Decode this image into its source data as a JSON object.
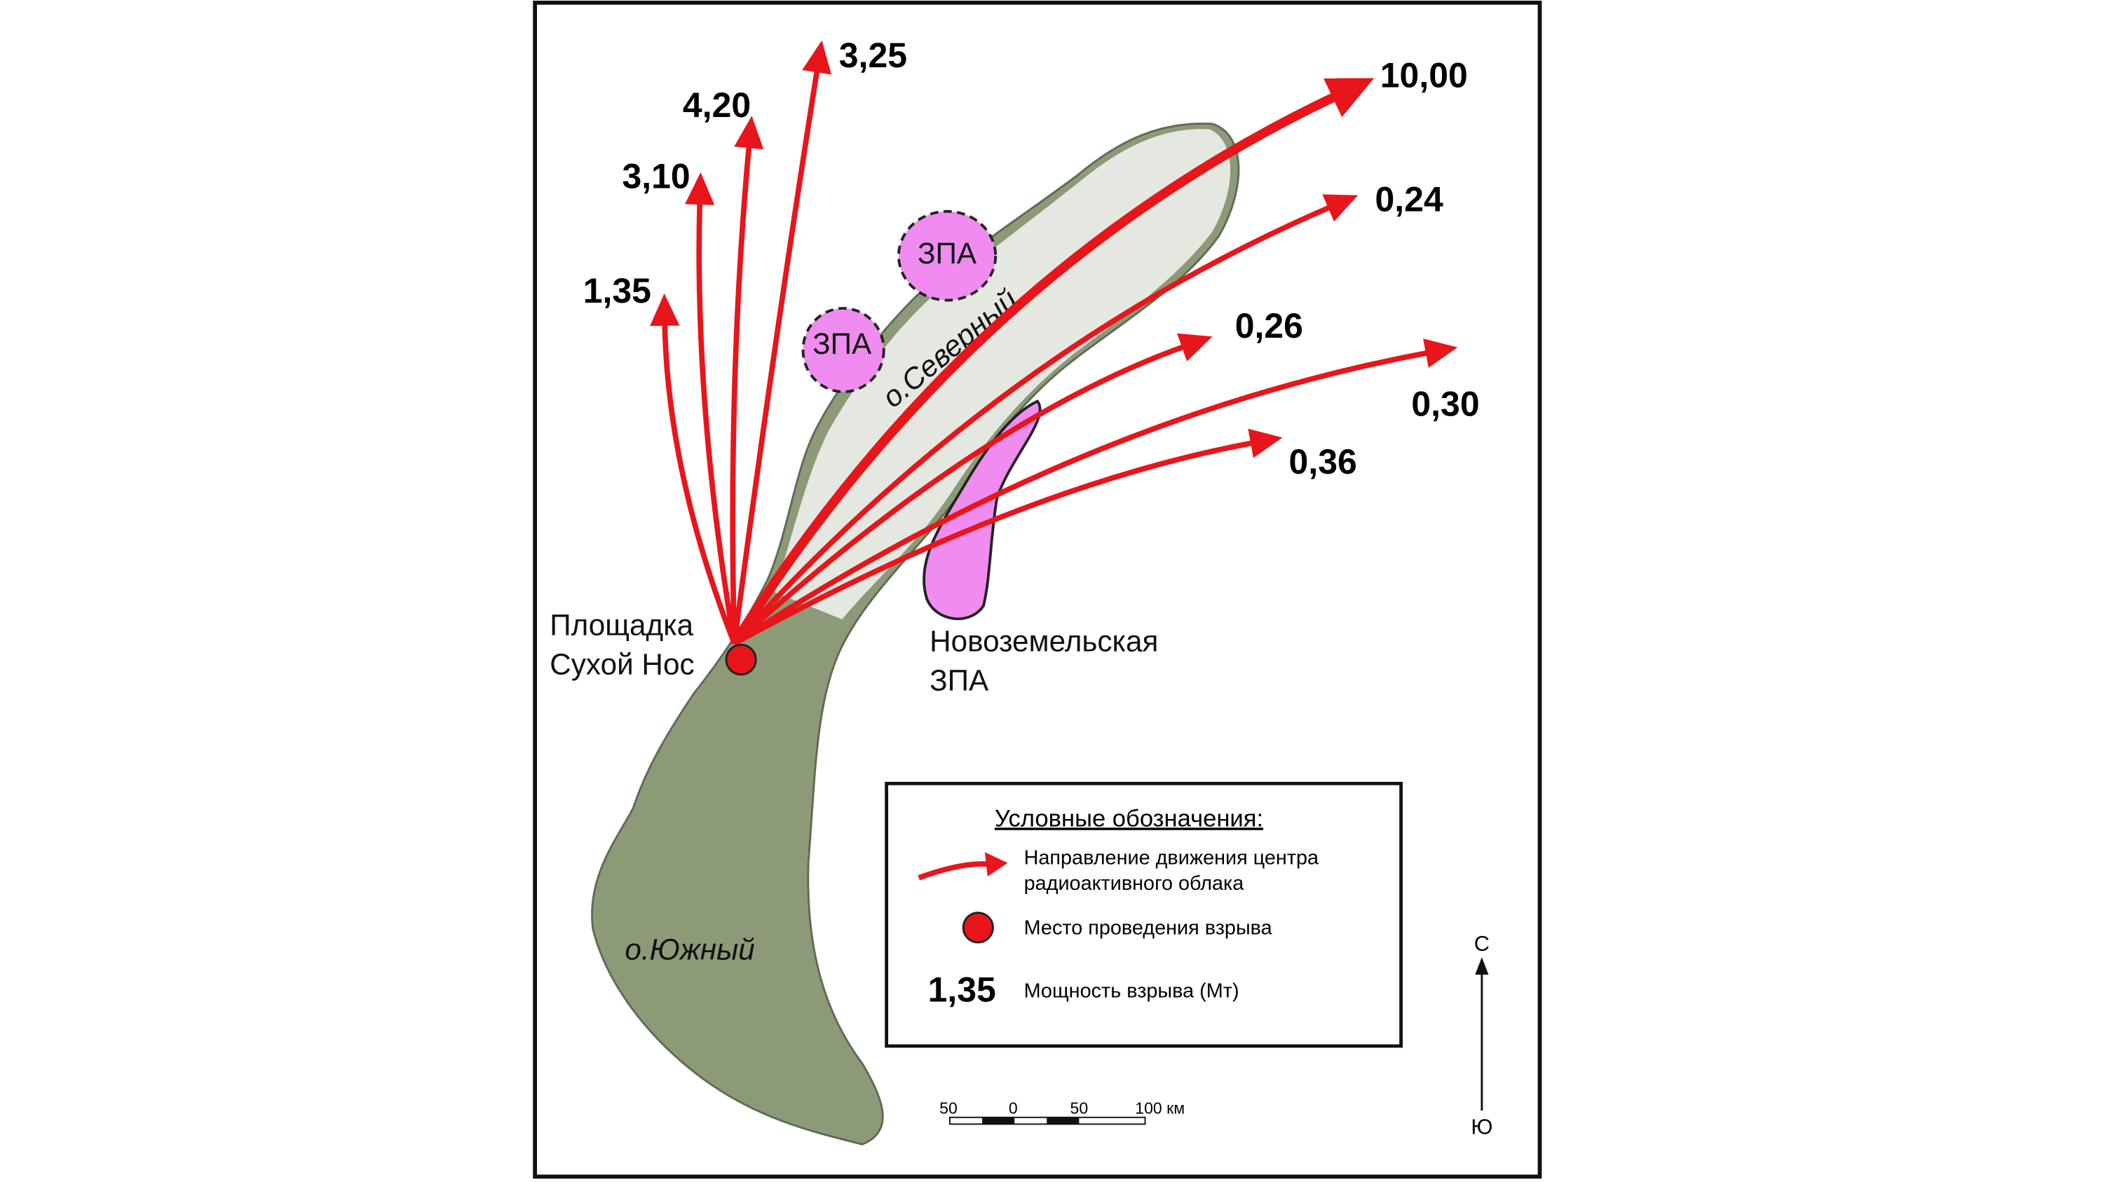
{
  "explosions": [
    "1,35",
    "3,10",
    "4,20",
    "3,25",
    "10,00",
    "0,24",
    "0,26",
    "0,30",
    "0,36"
  ],
  "places": {
    "site": [
      "Площадка",
      "Сухой Нос"
    ],
    "zone": [
      "Новоземельская",
      "ЗПА"
    ],
    "north_island": "о.Северный",
    "south_island": "о.Южный",
    "small_zones": [
      "ЗПА",
      "ЗПА"
    ]
  },
  "legend": {
    "title": "Условные обозначения:",
    "arrow": [
      "Направление движения центра",
      "радиоактивного облака"
    ],
    "point": "Место проведения взрыва",
    "sample": "1,35",
    "power": "Мощность взрыва (Мт)"
  },
  "scale": [
    "50",
    "0",
    "50",
    "100 км"
  ],
  "compass": {
    "north": "С",
    "south": "Ю"
  }
}
